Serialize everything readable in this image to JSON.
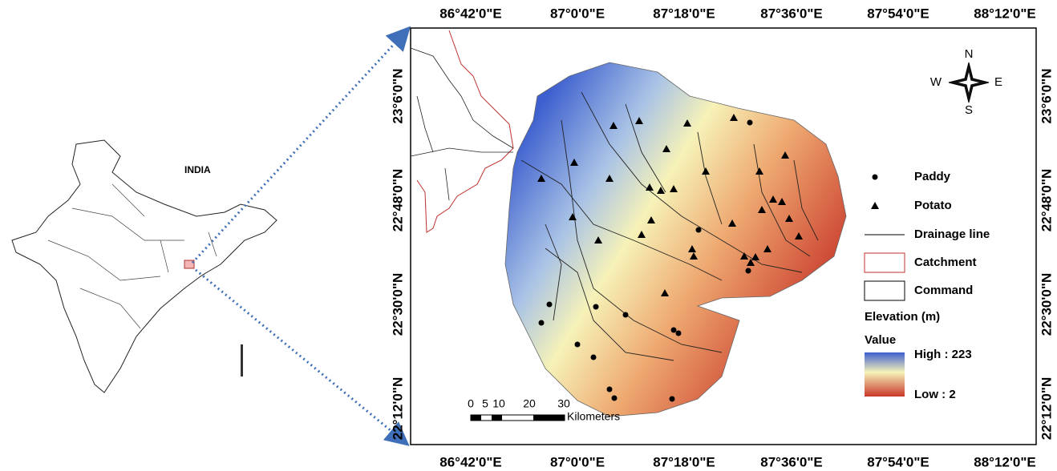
{
  "inset": {
    "label": "INDIA"
  },
  "map": {
    "lon_labels": [
      "86°42'0\"E",
      "87°0'0\"E",
      "87°18'0\"E",
      "87°36'0\"E",
      "87°54'0\"E",
      "88°12'0\"E"
    ],
    "lat_labels": [
      "23°6'0\"N",
      "22°48'0\"N",
      "22°30'0\"N",
      "22°12'0\"N"
    ],
    "compass": {
      "n": "N",
      "e": "E",
      "s": "S",
      "w": "W"
    },
    "legend": {
      "paddy": "Paddy",
      "potato": "Potato",
      "drainage": "Drainage line",
      "catchment": "Catchment",
      "command": "Command",
      "elevation_title": "Elevation (m)",
      "value": "Value",
      "high": "High : 223",
      "low": "Low : 2"
    },
    "scale_bar": {
      "ticks": [
        "0",
        "5",
        "10",
        "20",
        "30"
      ],
      "unit": "Kilometers"
    }
  }
}
